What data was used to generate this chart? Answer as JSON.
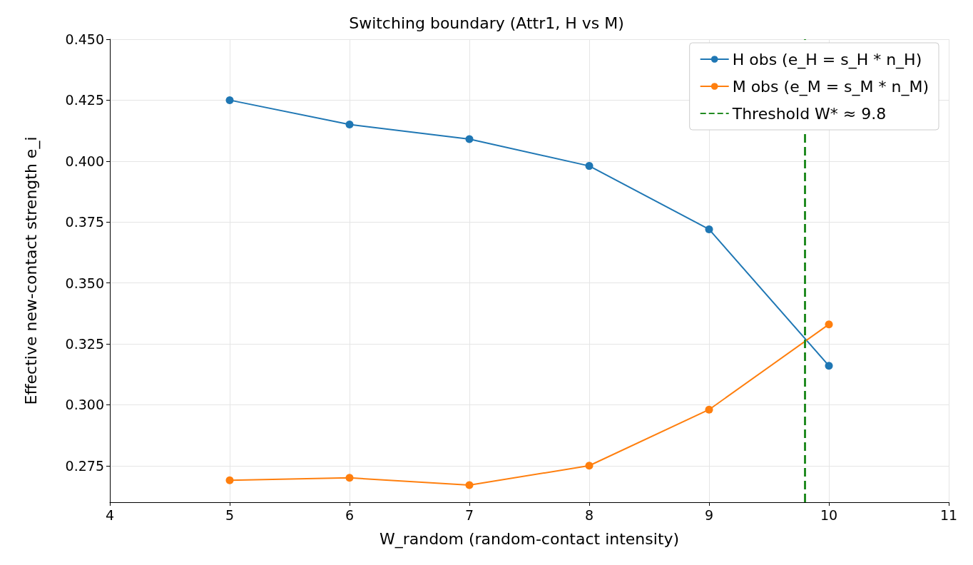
{
  "chart_data": {
    "type": "line",
    "title": "Switching boundary (Attr1, H vs M)",
    "xlabel": "W_random (random-contact intensity)",
    "ylabel": "Effective new-contact strength e_i",
    "x": [
      5,
      6,
      7,
      8,
      9,
      10
    ],
    "series": [
      {
        "name": "H obs (e_H = s_H * n_H)",
        "color": "#1f77b4",
        "values": [
          0.425,
          0.415,
          0.409,
          0.398,
          0.372,
          0.316
        ]
      },
      {
        "name": "M obs (e_M = s_M * n_M)",
        "color": "#ff7f0e",
        "values": [
          0.269,
          0.27,
          0.267,
          0.275,
          0.298,
          0.333
        ]
      }
    ],
    "xlim": [
      4,
      11
    ],
    "xticks": [
      4,
      5,
      6,
      7,
      8,
      9,
      10,
      11
    ],
    "ylim": [
      0.26,
      0.45
    ],
    "yticks": [
      {
        "value": 0.275,
        "label": "0.275"
      },
      {
        "value": 0.3,
        "label": "0.300"
      },
      {
        "value": 0.325,
        "label": "0.325"
      },
      {
        "value": 0.35,
        "label": "0.350"
      },
      {
        "value": 0.375,
        "label": "0.375"
      },
      {
        "value": 0.4,
        "label": "0.400"
      },
      {
        "value": 0.425,
        "label": "0.425"
      },
      {
        "value": 0.45,
        "label": "0.450"
      }
    ],
    "ref_lines": [
      {
        "axis": "x",
        "value": 9.8,
        "label": "Threshold W* ≈ 9.8",
        "color": "#228b22",
        "line_style": "dashed"
      }
    ],
    "grid": true,
    "legend": "top right",
    "marker": "circle",
    "line_style": "solid"
  }
}
